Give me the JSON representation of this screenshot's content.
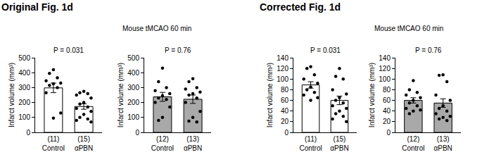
{
  "chart_data": [
    {
      "type": "bar",
      "title": "Original Fig. 1d",
      "subtitle": "Mouse tMCAO 60 min",
      "categories": [
        "(11)\nControl",
        "(15)\nαPBN"
      ],
      "values": [
        298,
        173
      ],
      "errors": [
        32,
        18
      ],
      "points": [
        [
          420,
          395,
          365,
          345,
          330,
          325,
          315,
          300,
          265,
          130,
          95
        ],
        [
          275,
          265,
          260,
          250,
          230,
          200,
          190,
          170,
          160,
          140,
          120,
          100,
          90,
          80,
          70
        ]
      ],
      "colors": [
        "#ffffff",
        "#ffffff"
      ],
      "y_label": "Infarct volume (mm³)",
      "annotation": "P = 0.031",
      "ylim": [
        0,
        500
      ],
      "yticks": [
        0,
        100,
        200,
        300,
        400,
        500
      ]
    },
    {
      "type": "bar",
      "categories": [
        "(12)\nControl",
        "(13)\nαPBN"
      ],
      "values": [
        238,
        222
      ],
      "errors": [
        30,
        28
      ],
      "points": [
        [
          430,
          340,
          300,
          280,
          260,
          245,
          230,
          220,
          200,
          170,
          100,
          80
        ],
        [
          360,
          340,
          300,
          290,
          270,
          260,
          250,
          230,
          200,
          140,
          100,
          75,
          70
        ]
      ],
      "colors": [
        "#a9a9a9",
        "#a9a9a9"
      ],
      "y_label": "Infarct volume (mm³)",
      "annotation": "P = 0.76",
      "ylim": [
        0,
        500
      ],
      "yticks": [
        0,
        100,
        200,
        300,
        400,
        500
      ]
    },
    {
      "type": "bar",
      "title": "Corrected Fig. 1d",
      "subtitle": "Mouse tMCAO 60 min",
      "categories": [
        "(11)\nControl",
        "(15)\nαPBN"
      ],
      "values": [
        89,
        60
      ],
      "errors": [
        6,
        8
      ],
      "points": [
        [
          123,
          120,
          108,
          100,
          92,
          85,
          80,
          75,
          70,
          65,
          60
        ],
        [
          120,
          105,
          100,
          80,
          72,
          65,
          60,
          55,
          50,
          45,
          40,
          35,
          30,
          25,
          20
        ]
      ],
      "colors": [
        "#ffffff",
        "#ffffff"
      ],
      "y_label": "Infarct volume (mm³)",
      "annotation": "P = 0.031",
      "ylim": [
        0,
        140
      ],
      "yticks": [
        0,
        20,
        40,
        60,
        80,
        100,
        120,
        140
      ]
    },
    {
      "type": "bar",
      "categories": [
        "(12)\nControl",
        "(13)\nαPBN"
      ],
      "values": [
        60,
        55
      ],
      "errors": [
        5,
        8
      ],
      "points": [
        [
          97,
          80,
          75,
          70,
          65,
          60,
          55,
          50,
          45,
          42,
          40,
          35
        ],
        [
          108,
          107,
          95,
          70,
          60,
          50,
          45,
          40,
          35,
          30,
          28,
          25,
          22
        ]
      ],
      "colors": [
        "#a9a9a9",
        "#a9a9a9"
      ],
      "y_label": "Infarct volume (mm³)",
      "annotation": "P = 0.76",
      "ylim": [
        0,
        140
      ],
      "yticks": [
        0,
        20,
        40,
        60,
        80,
        100,
        120,
        140
      ]
    }
  ]
}
